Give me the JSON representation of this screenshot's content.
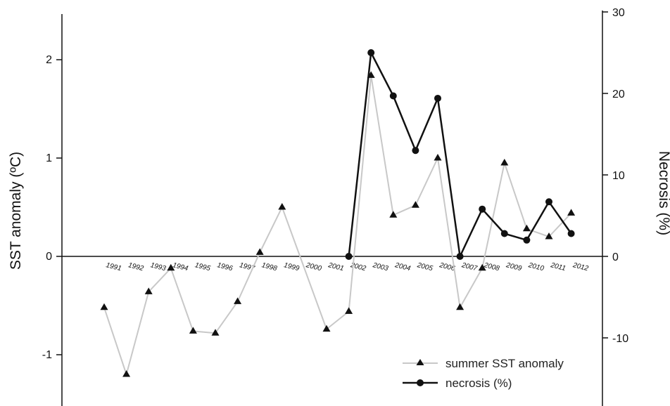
{
  "chart_data": {
    "type": "line",
    "title": "",
    "ylabel_left": "SST anomaly (ºC)",
    "ylabel_right": "Necrosis (%)",
    "y_left_ticks": [
      "-1",
      "0",
      "1",
      "2"
    ],
    "y_right_ticks": [
      "-10",
      "0",
      "10",
      "20",
      "30"
    ],
    "ylim_left": [
      -1.5,
      2.5
    ],
    "ylim_right": [
      -16.4,
      30
    ],
    "legend_position": "bottom-right",
    "grid": false,
    "x_tick_labels": [
      "1991",
      "1992",
      "1993",
      "1994",
      "1995",
      "1996",
      "1997",
      "1998",
      "1999",
      "2000",
      "2001",
      "2002",
      "2003",
      "2004",
      "2005",
      "2006",
      "2007",
      "2008",
      "2009",
      "2010",
      "2011",
      "2012"
    ],
    "series": [
      {
        "name": "summer SST anomaly",
        "axis": "left",
        "color": "#c8c8c8",
        "marker": "triangle",
        "x": [
          1991,
          1992,
          1993,
          1994,
          1995,
          1996,
          1997,
          1998,
          1999,
          2000,
          2001,
          2002,
          2003,
          2004,
          2005,
          2006,
          2007,
          2008,
          2009,
          2010,
          2011,
          2012
        ],
        "values": [
          -0.52,
          -1.2,
          -0.36,
          -0.12,
          -0.76,
          -0.78,
          -0.46,
          0.04,
          0.5,
          null,
          -0.74,
          -0.56,
          1.84,
          0.42,
          0.52,
          1.0,
          -0.52,
          -0.12,
          0.95,
          0.28,
          0.2,
          0.44
        ]
      },
      {
        "name": "necrosis (%)",
        "axis": "right",
        "color": "#111111",
        "marker": "circle",
        "x": [
          2002,
          2003,
          2004,
          2005,
          2006,
          2007,
          2008,
          2009,
          2010,
          2011,
          2012
        ],
        "values": [
          0,
          25,
          19.7,
          13.0,
          19.4,
          0,
          5.8,
          2.8,
          2.0,
          6.7,
          2.8
        ]
      }
    ]
  }
}
